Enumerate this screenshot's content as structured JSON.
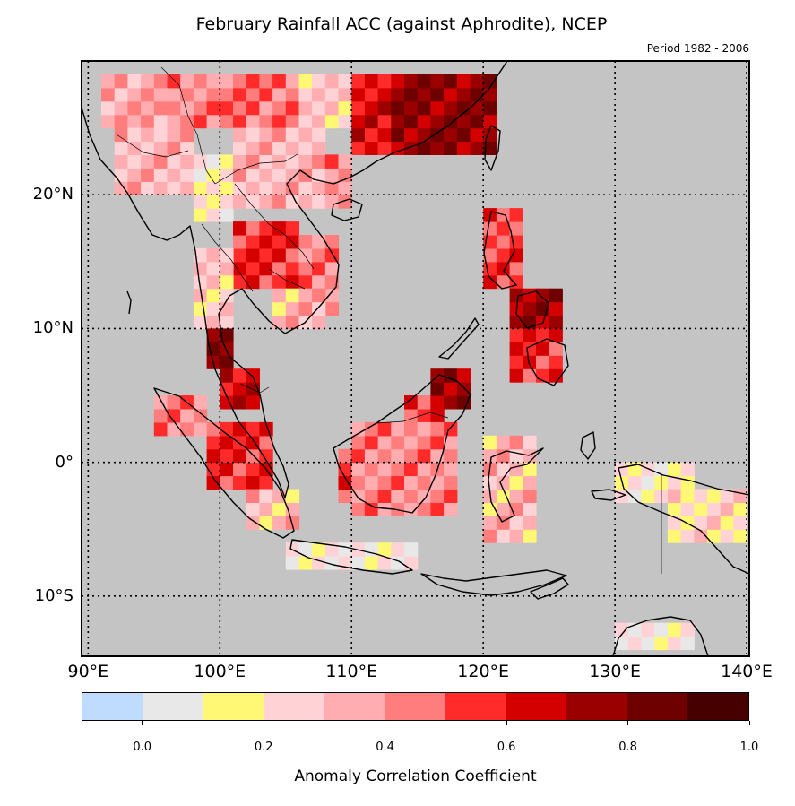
{
  "title": "February Rainfall ACC (against Aphrodite), NCEP",
  "period": "Period 1982 - 2006",
  "map": {
    "lon_range": [
      89.5,
      140.2
    ],
    "lat_range": [
      -14.5,
      30
    ],
    "ocean_color": "#c4c4c4",
    "lat_labels": [
      {
        "value": 20,
        "text": "20°N"
      },
      {
        "value": 10,
        "text": "10°N"
      },
      {
        "value": 0,
        "text": "0°"
      },
      {
        "value": -10,
        "text": "10°S"
      }
    ],
    "lon_labels": [
      {
        "value": 90,
        "text": "90°E"
      },
      {
        "value": 100,
        "text": "100°E"
      },
      {
        "value": 110,
        "text": "110°E"
      },
      {
        "value": 120,
        "text": "120°E"
      },
      {
        "value": 130,
        "text": "130°E"
      },
      {
        "value": 140,
        "text": "140°E"
      }
    ]
  },
  "chart_data": {
    "type": "heatmap",
    "title": "February Rainfall ACC (against Aphrodite), NCEP",
    "subtitle": "Period 1982 - 2006",
    "value_label": "Anomaly Correlation Coefficient",
    "grid_deg": 1,
    "regions": [
      {
        "lon": [
          91,
          96
        ],
        "lat": [
          25,
          29
        ],
        "v": 0.38
      },
      {
        "lon": [
          96,
          100
        ],
        "lat": [
          25,
          29
        ],
        "v": 0.42
      },
      {
        "lon": [
          100,
          106
        ],
        "lat": [
          25,
          29
        ],
        "v": 0.45
      },
      {
        "lon": [
          106,
          110
        ],
        "lat": [
          25,
          29
        ],
        "v": 0.28
      },
      {
        "lon": [
          110,
          113
        ],
        "lat": [
          23,
          29
        ],
        "v": 0.62
      },
      {
        "lon": [
          113,
          121
        ],
        "lat": [
          23,
          29
        ],
        "v": 0.75
      },
      {
        "lon": [
          92,
          98
        ],
        "lat": [
          20,
          25
        ],
        "v": 0.32
      },
      {
        "lon": [
          98,
          101
        ],
        "lat": [
          18,
          23
        ],
        "v": 0.18
      },
      {
        "lon": [
          101,
          108
        ],
        "lat": [
          19,
          25
        ],
        "v": 0.34
      },
      {
        "lon": [
          108,
          110
        ],
        "lat": [
          19,
          23
        ],
        "v": 0.4
      },
      {
        "lon": [
          101,
          106
        ],
        "lat": [
          13,
          18
        ],
        "v": 0.55
      },
      {
        "lon": [
          106,
          109
        ],
        "lat": [
          11,
          17
        ],
        "v": 0.42
      },
      {
        "lon": [
          98,
          101
        ],
        "lat": [
          10,
          16
        ],
        "v": 0.28
      },
      {
        "lon": [
          104,
          108
        ],
        "lat": [
          10,
          13
        ],
        "v": 0.3
      },
      {
        "lon": [
          99,
          101
        ],
        "lat": [
          7,
          10
        ],
        "v": 0.75
      },
      {
        "lon": [
          100,
          103
        ],
        "lat": [
          4,
          7
        ],
        "v": 0.66
      },
      {
        "lon": [
          95,
          99
        ],
        "lat": [
          2,
          5
        ],
        "v": 0.42
      },
      {
        "lon": [
          99,
          104
        ],
        "lat": [
          -2,
          3
        ],
        "v": 0.58
      },
      {
        "lon": [
          102,
          106
        ],
        "lat": [
          -5,
          -2
        ],
        "v": 0.3
      },
      {
        "lon": [
          109,
          112
        ],
        "lat": [
          -3,
          1
        ],
        "v": 0.52
      },
      {
        "lon": [
          112,
          115
        ],
        "lat": [
          -4,
          1
        ],
        "v": 0.3
      },
      {
        "lon": [
          114,
          117
        ],
        "lat": [
          2,
          5
        ],
        "v": 0.55
      },
      {
        "lon": [
          116,
          119
        ],
        "lat": [
          4,
          7
        ],
        "v": 0.75
      },
      {
        "lon": [
          110,
          118
        ],
        "lat": [
          -4,
          3
        ],
        "v": 0.42
      },
      {
        "lon": [
          120,
          124
        ],
        "lat": [
          -6,
          2
        ],
        "v": 0.3
      },
      {
        "lon": [
          120,
          123
        ],
        "lat": [
          13,
          19
        ],
        "v": 0.52
      },
      {
        "lon": [
          122,
          126
        ],
        "lat": [
          10,
          13
        ],
        "v": 0.72
      },
      {
        "lon": [
          122,
          126
        ],
        "lat": [
          6,
          10
        ],
        "v": 0.55
      },
      {
        "lon": [
          105,
          115
        ],
        "lat": [
          -8,
          -6
        ],
        "v": 0.15
      },
      {
        "lon": [
          130,
          136
        ],
        "lat": [
          -3,
          0
        ],
        "v": 0.18
      },
      {
        "lon": [
          134,
          140
        ],
        "lat": [
          -6,
          -2
        ],
        "v": 0.22
      },
      {
        "lon": [
          130,
          136
        ],
        "lat": [
          -14,
          -12
        ],
        "v": 0.15
      }
    ],
    "colorbar": {
      "bounds": [
        -0.1,
        0.0,
        0.1,
        0.2,
        0.3,
        0.4,
        0.5,
        0.6,
        0.7,
        0.8,
        0.9,
        1.0
      ],
      "colors": [
        "#bfdcff",
        "#e8e8e8",
        "#fff875",
        "#ffd2d6",
        "#ffadb0",
        "#ff7d7d",
        "#ff2a2a",
        "#d40000",
        "#9a0000",
        "#6e0000",
        "#460000"
      ],
      "tick_labels": [
        "0.0",
        "0.2",
        "0.4",
        "0.6",
        "0.8",
        "1.0"
      ],
      "tick_values": [
        0.0,
        0.2,
        0.4,
        0.6,
        0.8,
        1.0
      ],
      "label": "Anomaly Correlation Coefficient"
    }
  }
}
